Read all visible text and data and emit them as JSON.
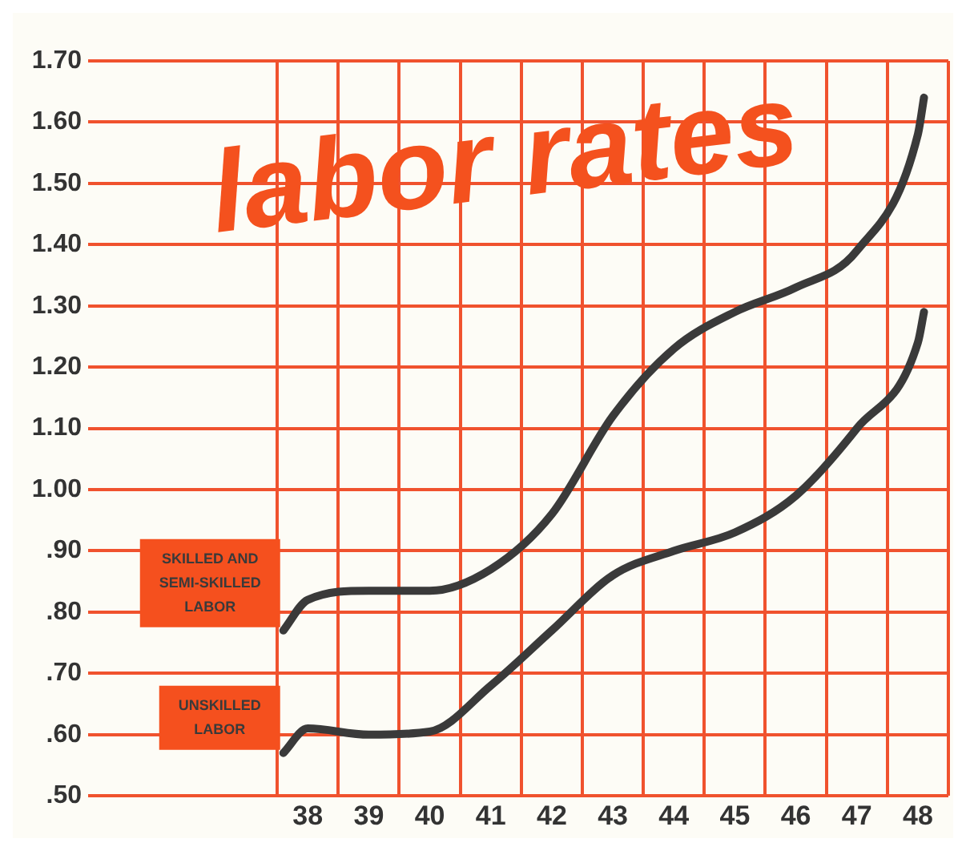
{
  "chart_data": {
    "type": "line",
    "title": "labor rates",
    "xlim": [
      34.4,
      48.5
    ],
    "xticks": [
      {
        "value": 37.5,
        "label": null
      },
      38,
      {
        "value": 38.5,
        "label": null
      },
      39,
      {
        "value": 39.5,
        "label": null
      },
      40,
      {
        "value": 40.5,
        "label": null
      },
      41,
      {
        "value": 41.5,
        "label": null
      },
      42,
      {
        "value": 42.5,
        "label": null
      },
      43,
      {
        "value": 43.5,
        "label": null
      },
      44,
      {
        "value": 44.5,
        "label": null
      },
      45,
      {
        "value": 45.5,
        "label": null
      },
      46,
      {
        "value": 46.5,
        "label": null
      },
      47,
      {
        "value": 47.5,
        "label": null
      },
      48,
      {
        "value": 48.5,
        "label": null
      }
    ],
    "ylim": [
      0.5,
      1.7
    ],
    "yticks": [
      {
        "value": 0.5,
        "label": ".50"
      },
      {
        "value": 0.6,
        "label": ".60"
      },
      {
        "value": 0.7,
        "label": ".70"
      },
      {
        "value": 0.8,
        "label": ".80"
      },
      {
        "value": 0.9,
        "label": ".90"
      },
      {
        "value": 1.0,
        "label": "1.00"
      },
      {
        "value": 1.1,
        "label": "1.10"
      },
      {
        "value": 1.2,
        "label": "1.20"
      },
      {
        "value": 1.3,
        "label": "1.30"
      },
      {
        "value": 1.4,
        "label": "1.40"
      },
      {
        "value": 1.5,
        "label": "1.50"
      },
      {
        "value": 1.6,
        "label": "1.60"
      },
      {
        "value": 1.7,
        "label": "1.70"
      }
    ],
    "grid": true,
    "legend": false,
    "marker": "none",
    "line_style": "solid",
    "series": [
      {
        "name": "SKILLED AND SEMI-SKILLED LABOR",
        "color": "#3a3a3a",
        "x": [
          37.6,
          38,
          39,
          40,
          41,
          42,
          43,
          44,
          45,
          46,
          47,
          48,
          48.1
        ],
        "values": [
          0.77,
          0.82,
          0.835,
          0.835,
          0.87,
          0.96,
          1.12,
          1.23,
          1.29,
          1.33,
          1.39,
          1.58,
          1.64
        ]
      },
      {
        "name": "UNSKILLED LABOR",
        "color": "#3a3a3a",
        "x": [
          37.6,
          38,
          39,
          40,
          41,
          42,
          43,
          44,
          45,
          46,
          47,
          48,
          48.1
        ],
        "values": [
          0.57,
          0.61,
          0.6,
          0.605,
          0.68,
          0.77,
          0.86,
          0.9,
          0.93,
          0.99,
          1.1,
          1.24,
          1.29
        ]
      }
    ]
  }
}
